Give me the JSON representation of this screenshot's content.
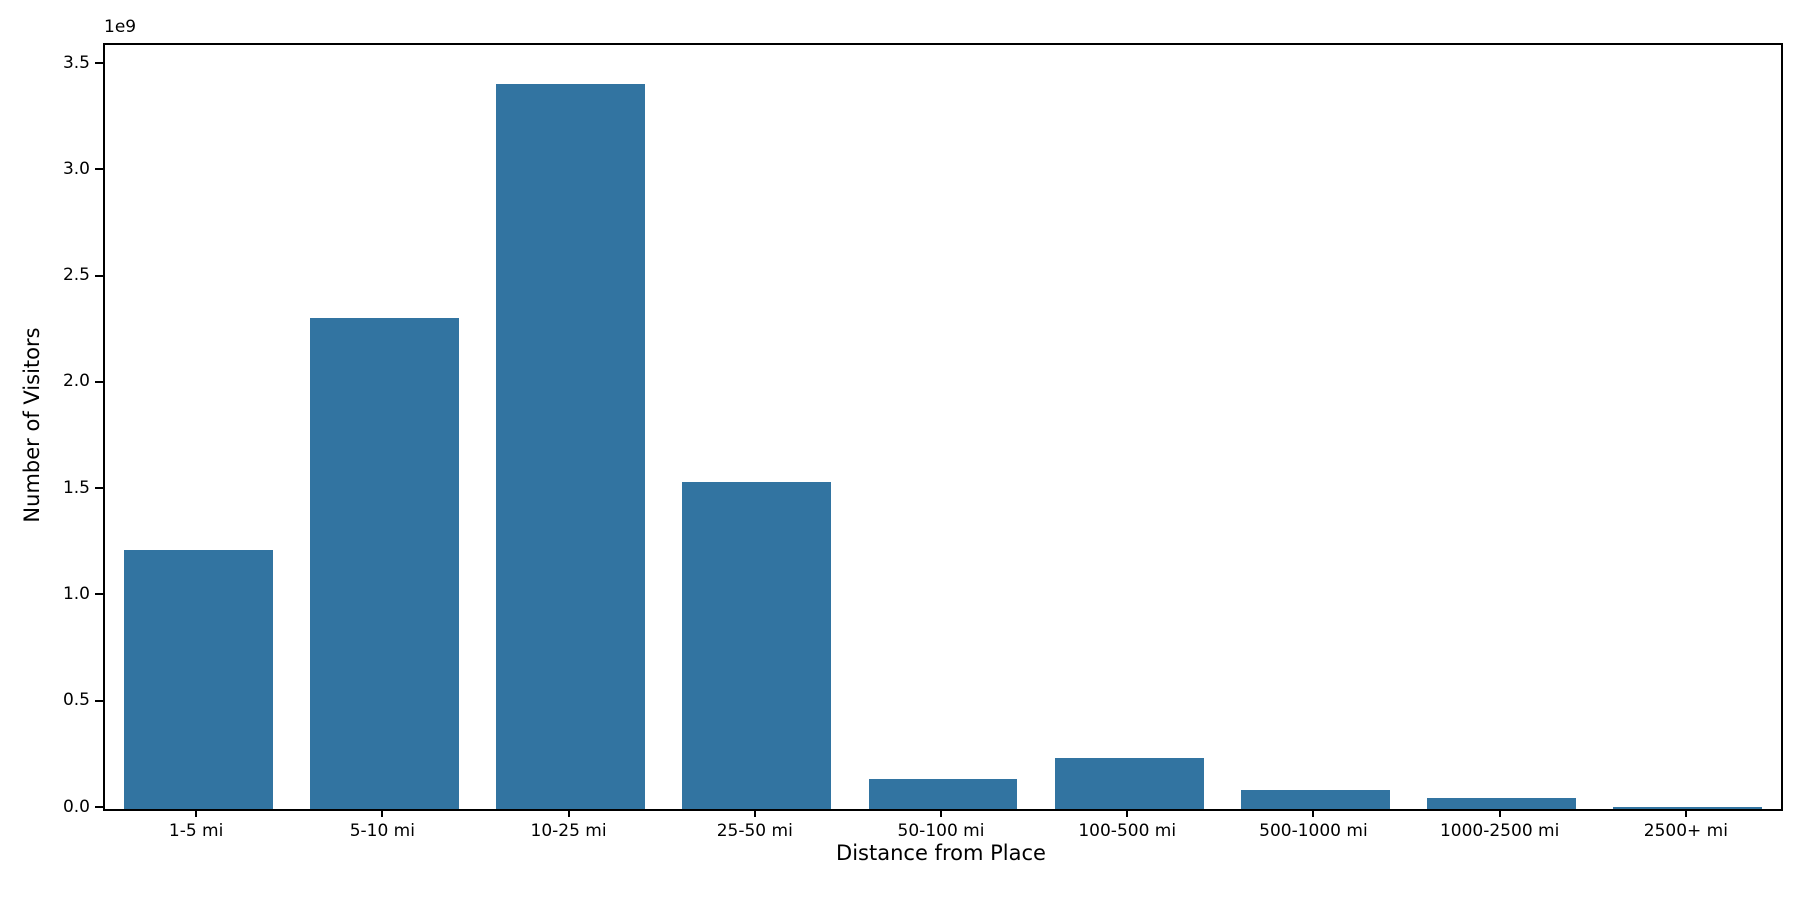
{
  "figure": {
    "background": "#ffffff",
    "spine_color": "#000000"
  },
  "chart_data": {
    "type": "bar",
    "title": "",
    "xlabel": "Distance from Place",
    "ylabel": "Number of Visitors",
    "offset_text": "1e9",
    "categories": [
      "1-5 mi",
      "5-10 mi",
      "10-25 mi",
      "25-50 mi",
      "50-100 mi",
      "100-500 mi",
      "500-1000 mi",
      "1000-2500 mi",
      "2500+ mi"
    ],
    "values": [
      1220000000,
      2310000000,
      3410000000,
      1540000000,
      140000000,
      240000000,
      90000000,
      50000000,
      10000000
    ],
    "bar_color": "#3274a1",
    "bar_width_fraction": 0.8,
    "ylim": [
      0,
      3595000000
    ],
    "y_ticks": [
      0,
      500000000,
      1000000000,
      1500000000,
      2000000000,
      2500000000,
      3000000000,
      3500000000
    ],
    "y_tick_labels": [
      "0.0",
      "0.5",
      "1.0",
      "1.5",
      "2.0",
      "2.5",
      "3.0",
      "3.5"
    ],
    "grid": false,
    "legend_position": "none"
  }
}
